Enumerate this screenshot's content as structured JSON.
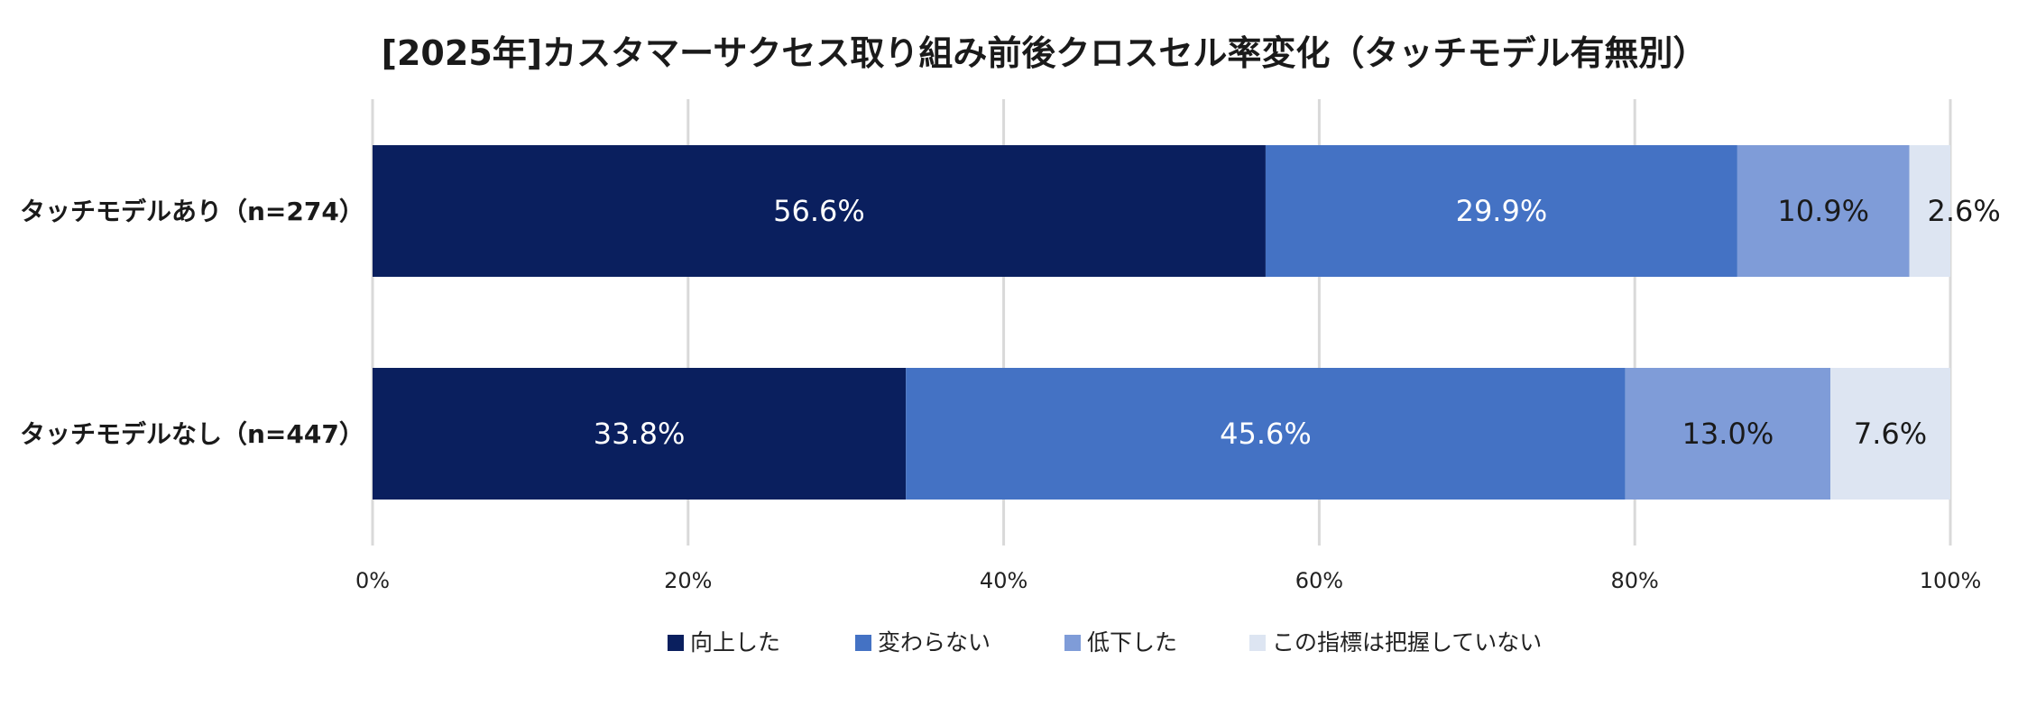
{
  "chart_data": {
    "type": "bar",
    "orientation": "horizontal",
    "stacked": true,
    "title": "[2025年]カスタマーサクセス取り組み前後クロスセル率変化（タッチモデル有無別）",
    "categories": [
      "タッチモデルあり（n=274）",
      "タッチモデルなし（n=447）"
    ],
    "series": [
      {
        "name": "向上した",
        "values": [
          56.6,
          33.8
        ],
        "labels": [
          "56.6%",
          "33.8%"
        ],
        "color": "#0a1f5e",
        "label_color": "#ffffff"
      },
      {
        "name": "変わらない",
        "values": [
          29.9,
          45.6
        ],
        "labels": [
          "29.9%",
          "45.6%"
        ],
        "color": "#4472c4",
        "label_color": "#ffffff"
      },
      {
        "name": "低下した",
        "values": [
          10.9,
          13.0
        ],
        "labels": [
          "10.9%",
          "13.0%"
        ],
        "color": "#7f9cd8",
        "label_color": "#1a1a1a"
      },
      {
        "name": "この指標は把握していない",
        "values": [
          2.6,
          7.6
        ],
        "labels": [
          "2.6%",
          "7.6%"
        ],
        "color": "#dde5f2",
        "label_color": "#1a1a1a"
      }
    ],
    "x_ticks": [
      "0%",
      "20%",
      "40%",
      "60%",
      "80%",
      "100%"
    ],
    "xlim": [
      0,
      100
    ],
    "grid": true,
    "legend_position": "bottom"
  }
}
